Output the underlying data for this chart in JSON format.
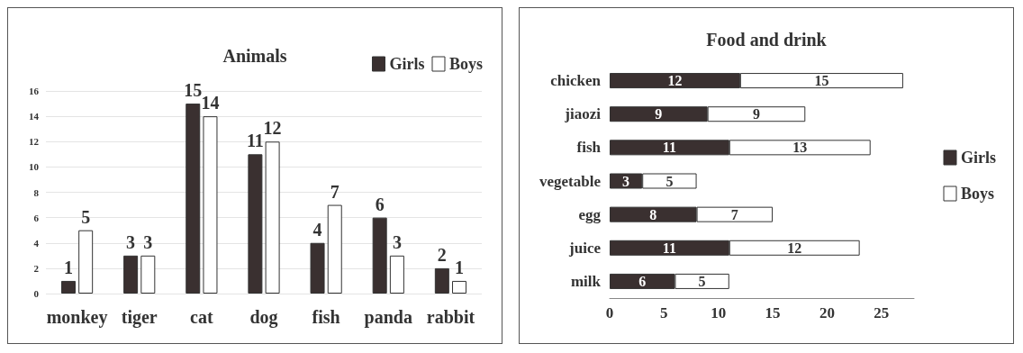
{
  "chart_data": [
    {
      "type": "bar",
      "title": "Animals",
      "categories": [
        "monkey",
        "tiger",
        "cat",
        "dog",
        "fish",
        "panda",
        "rabbit"
      ],
      "series": [
        {
          "name": "Girls",
          "color": "#3a3030",
          "values": [
            1,
            3,
            15,
            11,
            4,
            6,
            2
          ]
        },
        {
          "name": "Boys",
          "color": "#ffffff",
          "values": [
            5,
            3,
            14,
            12,
            7,
            3,
            1
          ]
        }
      ],
      "ylim": [
        0,
        16
      ],
      "yticks": [
        0,
        2,
        4,
        6,
        8,
        10,
        12,
        14,
        16
      ],
      "grid": "y",
      "legend": "top right",
      "data_labels": true
    },
    {
      "type": "bar",
      "title": "Food and drink",
      "orientation": "horizontal",
      "stacked": true,
      "categories": [
        "chicken",
        "jiaozi",
        "fish",
        "vegetable",
        "egg",
        "juice",
        "milk"
      ],
      "series": [
        {
          "name": "Girls",
          "color": "#3a3030",
          "values": [
            12,
            9,
            11,
            3,
            8,
            11,
            6
          ]
        },
        {
          "name": "Boys",
          "color": "#ffffff",
          "values": [
            15,
            9,
            13,
            5,
            7,
            12,
            5
          ]
        }
      ],
      "xlim": [
        0,
        28
      ],
      "xticks": [
        0,
        5,
        10,
        15,
        20,
        25
      ],
      "legend": "right",
      "data_labels": true
    }
  ]
}
